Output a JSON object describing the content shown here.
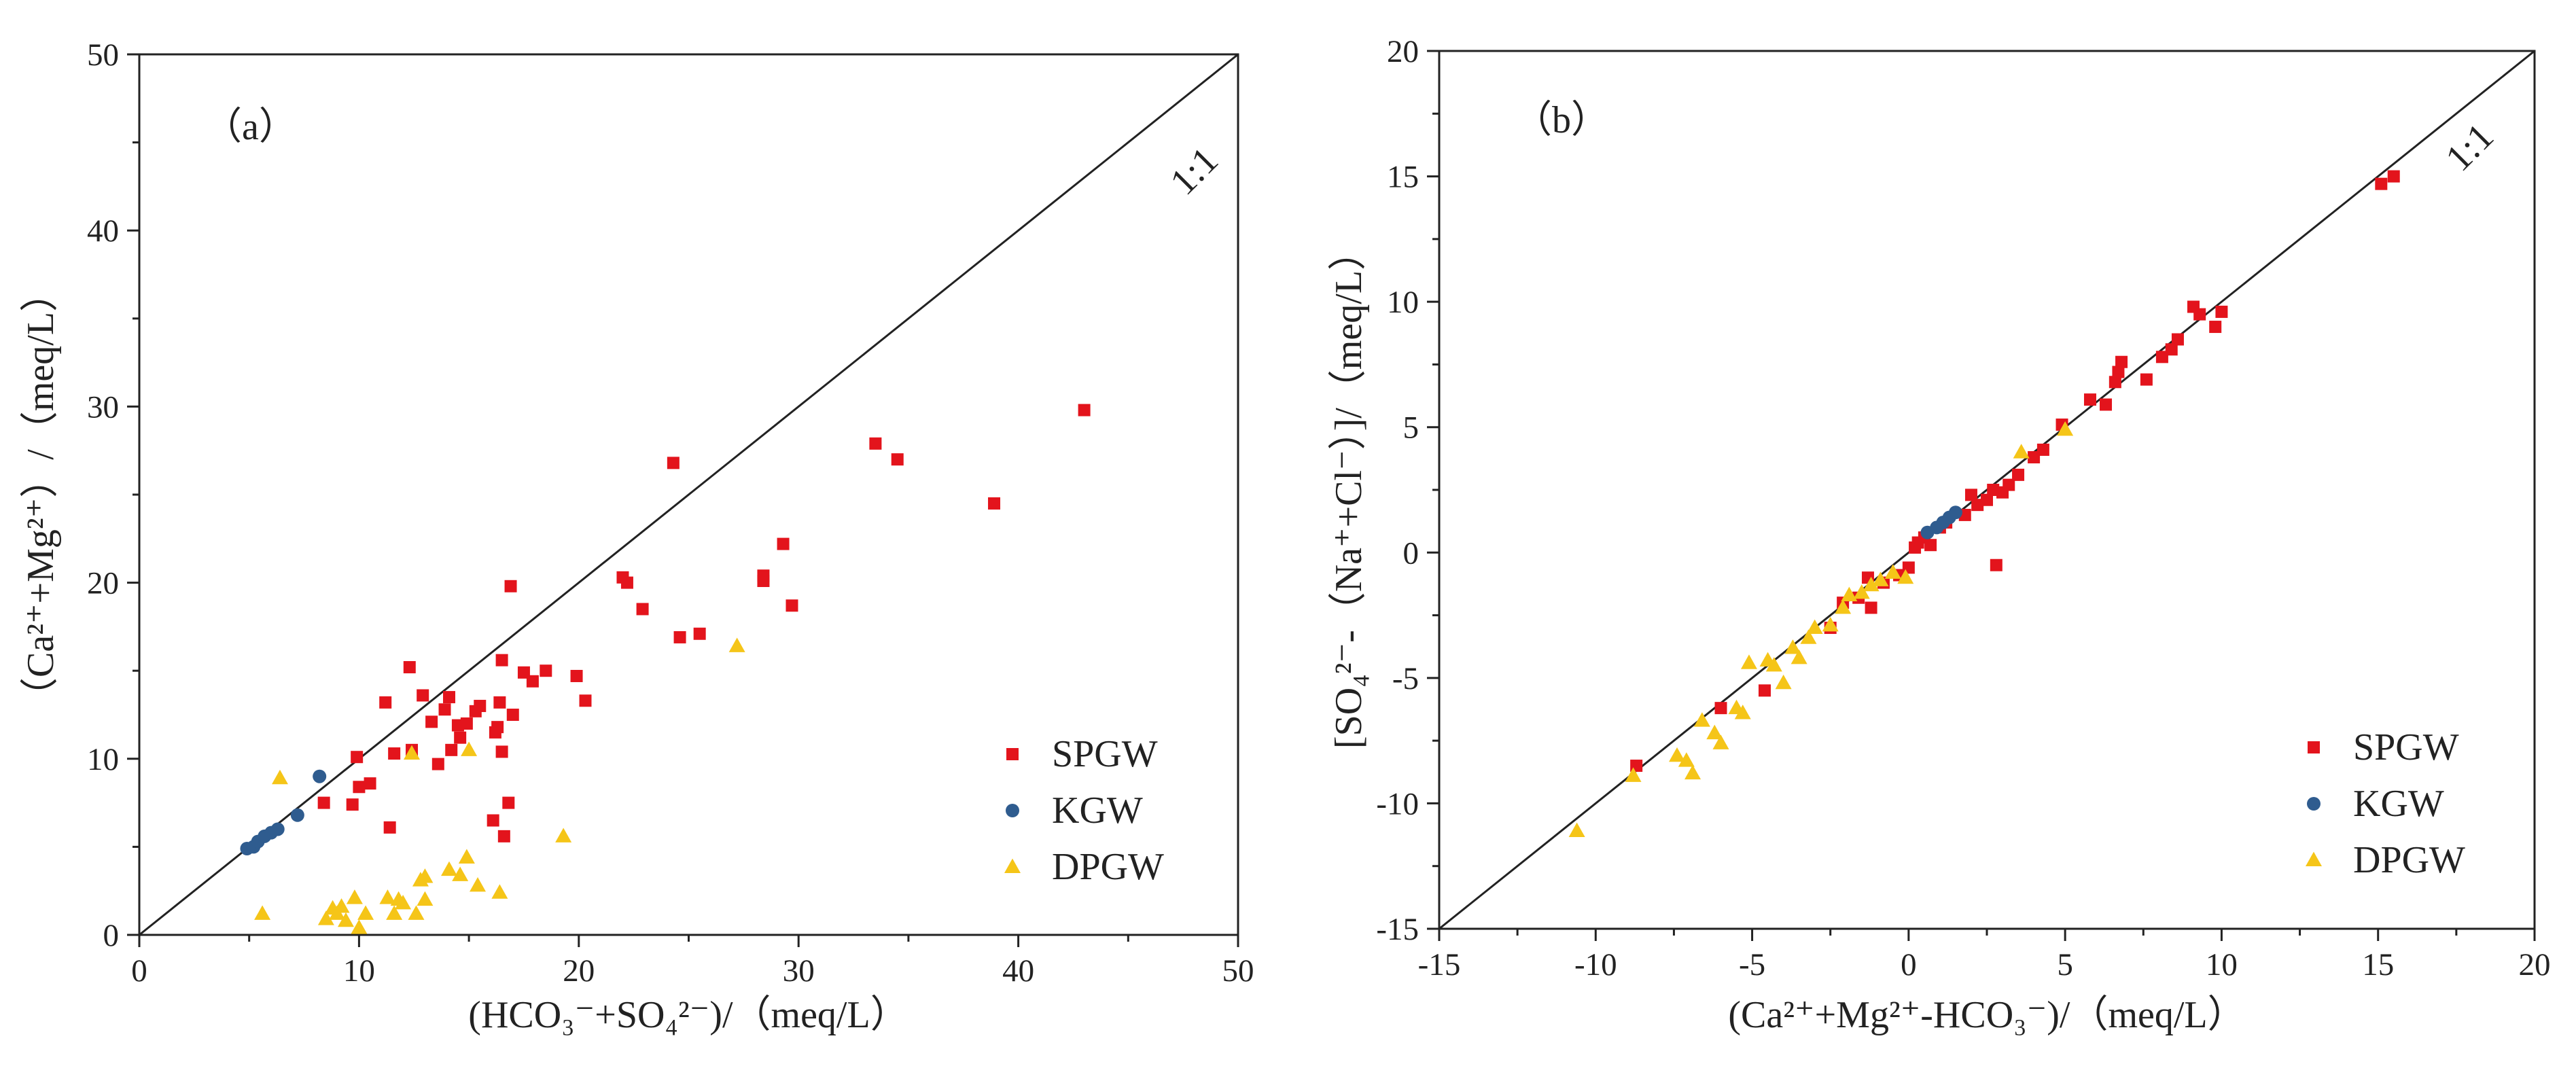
{
  "colors": {
    "SPGW": "#e3141c",
    "KGW": "#2f5c8f",
    "DPGW": "#f5c518",
    "axis": "#222222"
  },
  "chart_data": [
    {
      "type": "scatter",
      "panel_label": "（a）",
      "ref_line_label": "1:1",
      "xlabel": "(HCO₃⁻+SO₄²⁻)/（meq/L）",
      "ylabel": "（Ca²⁺+Mg²⁺）/（meq/L）",
      "xlim": [
        0,
        50
      ],
      "ylim": [
        0,
        50
      ],
      "xticks": [
        0,
        10,
        20,
        30,
        40,
        50
      ],
      "yticks": [
        0,
        10,
        20,
        30,
        40,
        50
      ],
      "legend_position": "bottom-right",
      "series": [
        {
          "name": "SPGW",
          "marker": "square",
          "points": [
            [
              8.4,
              7.5
            ],
            [
              9.7,
              7.4
            ],
            [
              10.0,
              8.4
            ],
            [
              9.9,
              10.1
            ],
            [
              10.5,
              8.6
            ],
            [
              11.2,
              13.2
            ],
            [
              11.4,
              6.1
            ],
            [
              11.6,
              10.3
            ],
            [
              12.3,
              15.2
            ],
            [
              12.4,
              10.5
            ],
            [
              12.9,
              13.6
            ],
            [
              13.3,
              12.1
            ],
            [
              13.6,
              9.7
            ],
            [
              13.9,
              12.8
            ],
            [
              14.1,
              13.5
            ],
            [
              14.2,
              10.5
            ],
            [
              14.5,
              11.9
            ],
            [
              14.6,
              11.2
            ],
            [
              14.9,
              12.0
            ],
            [
              15.3,
              12.7
            ],
            [
              15.5,
              13.0
            ],
            [
              16.1,
              6.5
            ],
            [
              16.2,
              11.5
            ],
            [
              16.3,
              11.8
            ],
            [
              16.4,
              13.2
            ],
            [
              16.5,
              15.6
            ],
            [
              16.5,
              10.4
            ],
            [
              16.6,
              5.6
            ],
            [
              16.8,
              7.5
            ],
            [
              16.9,
              19.8
            ],
            [
              17.0,
              12.5
            ],
            [
              17.5,
              14.9
            ],
            [
              17.9,
              14.4
            ],
            [
              18.5,
              15.0
            ],
            [
              19.9,
              14.7
            ],
            [
              20.3,
              13.3
            ],
            [
              22.0,
              20.3
            ],
            [
              22.2,
              20.0
            ],
            [
              22.9,
              18.5
            ],
            [
              24.3,
              26.8
            ],
            [
              24.6,
              16.9
            ],
            [
              25.5,
              17.1
            ],
            [
              28.4,
              20.1
            ],
            [
              28.4,
              20.4
            ],
            [
              29.3,
              22.2
            ],
            [
              29.7,
              18.7
            ],
            [
              33.5,
              27.9
            ],
            [
              34.5,
              27.0
            ],
            [
              38.9,
              24.5
            ],
            [
              43.0,
              29.8
            ]
          ]
        },
        {
          "name": "KGW",
          "marker": "circle",
          "points": [
            [
              4.9,
              4.9
            ],
            [
              5.2,
              5.0
            ],
            [
              5.4,
              5.3
            ],
            [
              5.7,
              5.6
            ],
            [
              6.0,
              5.8
            ],
            [
              6.3,
              6.0
            ],
            [
              7.2,
              6.8
            ],
            [
              8.2,
              9.0
            ]
          ]
        },
        {
          "name": "DPGW",
          "marker": "triangle",
          "points": [
            [
              5.6,
              1.2
            ],
            [
              6.4,
              8.9
            ],
            [
              8.5,
              0.9
            ],
            [
              8.8,
              1.5
            ],
            [
              9.0,
              1.2
            ],
            [
              9.2,
              1.6
            ],
            [
              9.4,
              0.8
            ],
            [
              9.8,
              2.1
            ],
            [
              10.0,
              0.4
            ],
            [
              10.3,
              1.2
            ],
            [
              11.3,
              2.1
            ],
            [
              11.6,
              1.2
            ],
            [
              11.8,
              2.0
            ],
            [
              12.0,
              1.8
            ],
            [
              12.4,
              10.3
            ],
            [
              12.6,
              1.2
            ],
            [
              12.8,
              3.1
            ],
            [
              13.0,
              3.3
            ],
            [
              13.0,
              2.0
            ],
            [
              14.1,
              3.7
            ],
            [
              14.6,
              3.4
            ],
            [
              14.9,
              4.4
            ],
            [
              15.0,
              10.5
            ],
            [
              15.4,
              2.8
            ],
            [
              16.4,
              2.4
            ],
            [
              19.3,
              5.6
            ],
            [
              27.2,
              16.4
            ]
          ]
        }
      ]
    },
    {
      "type": "scatter",
      "panel_label": "（b）",
      "ref_line_label": "1:1",
      "xlabel": "(Ca²⁺+Mg²⁺-HCO₃⁻)/（meq/L）",
      "ylabel": "[SO₄²⁻-（Na⁺+Cl⁻）]/（meq/L）",
      "xlim": [
        -15,
        20
      ],
      "ylim": [
        -15,
        20
      ],
      "xticks": [
        -15,
        -10,
        -5,
        0,
        5,
        10,
        15,
        20
      ],
      "yticks": [
        -15,
        -10,
        -5,
        0,
        5,
        10,
        15,
        20
      ],
      "legend_position": "bottom-right",
      "series": [
        {
          "name": "SPGW",
          "marker": "square",
          "points": [
            [
              -8.7,
              -8.5
            ],
            [
              -6.0,
              -6.2
            ],
            [
              -4.6,
              -5.5
            ],
            [
              -2.5,
              -3.0
            ],
            [
              -2.1,
              -2.0
            ],
            [
              -1.6,
              -1.8
            ],
            [
              -1.3,
              -1.0
            ],
            [
              -1.2,
              -2.2
            ],
            [
              -0.8,
              -1.2
            ],
            [
              -0.3,
              -0.9
            ],
            [
              0.0,
              -0.6
            ],
            [
              0.2,
              0.2
            ],
            [
              0.3,
              0.4
            ],
            [
              0.5,
              0.6
            ],
            [
              0.7,
              0.3
            ],
            [
              1.0,
              1.0
            ],
            [
              1.2,
              1.2
            ],
            [
              1.8,
              1.5
            ],
            [
              2.0,
              2.3
            ],
            [
              2.2,
              1.9
            ],
            [
              2.5,
              2.1
            ],
            [
              2.7,
              2.5
            ],
            [
              2.8,
              -0.5
            ],
            [
              3.0,
              2.4
            ],
            [
              3.2,
              2.7
            ],
            [
              3.5,
              3.1
            ],
            [
              4.0,
              3.8
            ],
            [
              4.3,
              4.1
            ],
            [
              4.9,
              5.1
            ],
            [
              5.8,
              6.1
            ],
            [
              6.3,
              5.9
            ],
            [
              6.6,
              6.8
            ],
            [
              6.7,
              7.2
            ],
            [
              6.8,
              7.6
            ],
            [
              7.6,
              6.9
            ],
            [
              8.1,
              7.8
            ],
            [
              8.4,
              8.1
            ],
            [
              8.6,
              8.5
            ],
            [
              9.1,
              9.8
            ],
            [
              9.3,
              9.5
            ],
            [
              9.8,
              9.0
            ],
            [
              10.0,
              9.6
            ],
            [
              15.1,
              14.7
            ],
            [
              15.5,
              15.0
            ]
          ]
        },
        {
          "name": "KGW",
          "marker": "circle",
          "points": [
            [
              0.6,
              0.8
            ],
            [
              0.9,
              1.0
            ],
            [
              1.1,
              1.2
            ],
            [
              1.3,
              1.4
            ],
            [
              1.5,
              1.6
            ]
          ]
        },
        {
          "name": "DPGW",
          "marker": "triangle",
          "points": [
            [
              -10.6,
              -11.1
            ],
            [
              -8.8,
              -8.9
            ],
            [
              -7.4,
              -8.1
            ],
            [
              -7.1,
              -8.3
            ],
            [
              -6.9,
              -8.8
            ],
            [
              -6.6,
              -6.7
            ],
            [
              -6.2,
              -7.2
            ],
            [
              -6.0,
              -7.6
            ],
            [
              -5.5,
              -6.2
            ],
            [
              -5.3,
              -6.4
            ],
            [
              -5.1,
              -4.4
            ],
            [
              -4.5,
              -4.3
            ],
            [
              -4.3,
              -4.5
            ],
            [
              -4.0,
              -5.2
            ],
            [
              -3.7,
              -3.8
            ],
            [
              -3.5,
              -4.2
            ],
            [
              -3.2,
              -3.4
            ],
            [
              -3.0,
              -3.0
            ],
            [
              -2.5,
              -2.9
            ],
            [
              -2.1,
              -2.2
            ],
            [
              -1.9,
              -1.7
            ],
            [
              -1.5,
              -1.6
            ],
            [
              -1.2,
              -1.3
            ],
            [
              -0.9,
              -1.1
            ],
            [
              -0.5,
              -0.8
            ],
            [
              -0.1,
              -1.0
            ],
            [
              3.6,
              4.0
            ],
            [
              5.0,
              4.9
            ]
          ]
        }
      ]
    }
  ]
}
